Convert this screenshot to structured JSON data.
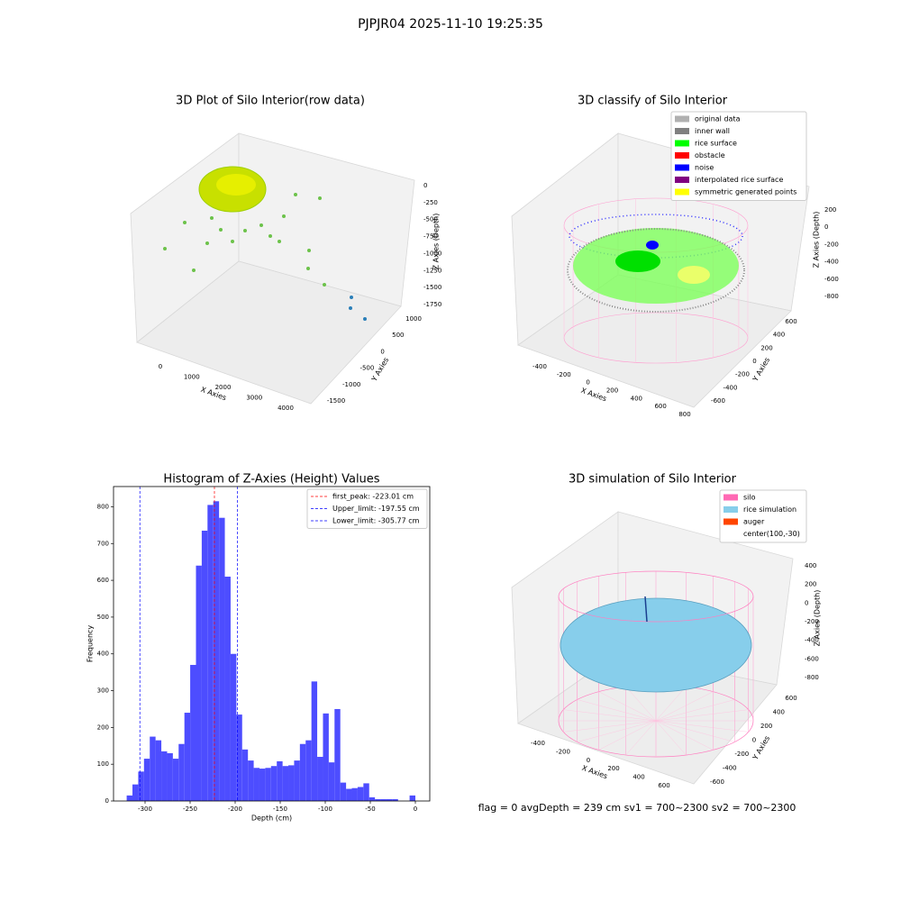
{
  "suptitle": "PJPJR04 2025-11-10 19:25:35",
  "annotation": "flag = 0     avgDepth = 239 cm  sv1 = 700~2300  sv2 = 700~2300",
  "chart_data": [
    {
      "type": "scatter3d",
      "title": "3D Plot of Silo Interior(row data)",
      "xlabel": "X Axies",
      "ylabel": "Y Axies",
      "zlabel": "Z Axies (Depth)",
      "xticks": [
        0,
        1000,
        2000,
        3000,
        4000
      ],
      "yticks": [
        -1500,
        -1000,
        -500,
        0,
        500,
        1000
      ],
      "zticks": [
        0,
        -250,
        -500,
        -750,
        -1000,
        -1250,
        -1500,
        -1750
      ]
    },
    {
      "type": "scatter3d",
      "title": "3D classify of Silo Interior",
      "xlabel": "X Axies",
      "ylabel": "Y Axies",
      "zlabel": "Z Axies (Depth)",
      "xticks": [
        -400,
        -200,
        0,
        200,
        400,
        600,
        800
      ],
      "yticks": [
        -600,
        -400,
        -200,
        0,
        200,
        400,
        600
      ],
      "zticks": [
        200,
        0,
        -200,
        -400,
        -600,
        -800
      ],
      "legend_position": "upper right",
      "legend": [
        {
          "name": "original data",
          "color": "#b0b0b0"
        },
        {
          "name": "inner wall",
          "color": "#808080"
        },
        {
          "name": "rice surface",
          "color": "#00ff00"
        },
        {
          "name": "obstacle",
          "color": "#ff0000"
        },
        {
          "name": "noise",
          "color": "#0000ff"
        },
        {
          "name": "interpolated rice surface",
          "color": "#800080"
        },
        {
          "name": "symmetric generated points",
          "color": "#ffff00"
        }
      ]
    },
    {
      "type": "histogram",
      "title": "Histogram of Z-Axies (Height) Values",
      "xlabel": "Depth (cm)",
      "ylabel": "Frequency",
      "color": "#4d4dff",
      "bins": [
        -320.4,
        -313.99,
        -307.58,
        -301.18,
        -294.77,
        -288.36,
        -281.95,
        -275.54,
        -269.14,
        -262.73,
        -256.32,
        -249.91,
        -243.5,
        -237.1,
        -230.69,
        -224.28,
        -217.87,
        -211.46,
        -205.06,
        -198.65,
        -192.24,
        -185.83,
        -179.42,
        -173.02,
        -166.61,
        -160.2,
        -153.79,
        -147.38,
        -140.98,
        -134.57,
        -128.16,
        -121.75,
        -115.34,
        -108.94,
        -102.53,
        -96.12,
        -89.71,
        -83.3,
        -76.9,
        -70.49,
        -64.08,
        -57.67,
        -51.26,
        -44.86,
        -38.45,
        -32.04,
        -25.63,
        -19.22,
        -12.82,
        -6.41,
        0
      ],
      "values": [
        15,
        45,
        80,
        115,
        175,
        165,
        135,
        130,
        115,
        155,
        240,
        370,
        640,
        735,
        805,
        815,
        770,
        610,
        400,
        235,
        140,
        110,
        90,
        88,
        90,
        95,
        108,
        95,
        97,
        110,
        155,
        165,
        325,
        120,
        238,
        105,
        250,
        50,
        33,
        35,
        38,
        48,
        10,
        5,
        5,
        5,
        5,
        0,
        0,
        15
      ],
      "xlim": [
        -335,
        16
      ],
      "ylim": [
        0,
        855
      ],
      "xticks": [
        -300,
        -250,
        -200,
        -150,
        -100,
        -50,
        0
      ],
      "yticks": [
        0,
        100,
        200,
        300,
        400,
        500,
        600,
        700,
        800
      ],
      "legend_position": "upper right",
      "vlines": [
        {
          "name": "first_peak: -223.01 cm",
          "value": -223.01,
          "color": "#ff0000"
        },
        {
          "name": "Upper_limit: -197.55 cm",
          "value": -197.55,
          "color": "#0000ff"
        },
        {
          "name": "Lower_limit: -305.77 cm",
          "value": -305.77,
          "color": "#0000ff"
        }
      ]
    },
    {
      "type": "surface3d",
      "title": "3D simulation of Silo Interior",
      "xlabel": "X Axies",
      "ylabel": "Y Axies",
      "zlabel": "Z Axies (Depth)",
      "xticks": [
        -400,
        -200,
        0,
        200,
        400,
        600
      ],
      "yticks": [
        -600,
        -400,
        -200,
        0,
        200,
        400,
        600
      ],
      "zticks": [
        400,
        200,
        0,
        -200,
        -400,
        -600,
        -800
      ],
      "legend_position": "upper right",
      "legend": [
        {
          "name": "silo",
          "color": "#ff69b4"
        },
        {
          "name": "rice simulation",
          "color": "#87ceeb"
        },
        {
          "name": "auger",
          "color": "#ff4500"
        },
        {
          "name": "center(100,-30)"
        }
      ]
    }
  ]
}
